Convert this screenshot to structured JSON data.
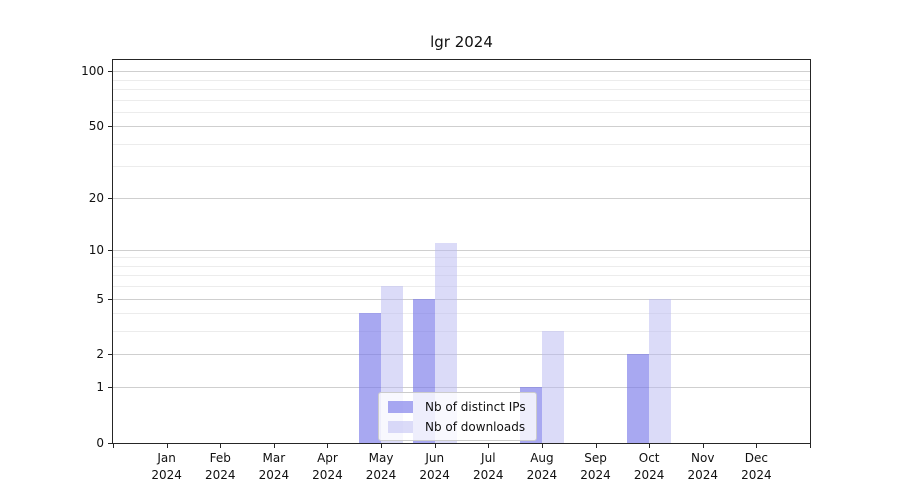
{
  "figure": {
    "title": "lgr 2024"
  },
  "chart_data": {
    "type": "bar",
    "title": "lgr 2024",
    "categories": [
      "Jan",
      "Feb",
      "Mar",
      "Apr",
      "May",
      "Jun",
      "Jul",
      "Aug",
      "Sep",
      "Oct",
      "Nov",
      "Dec"
    ],
    "x_year_label": "2024",
    "series": [
      {
        "name": "Nb of distinct IPs",
        "color": "rgba(122,122,233,0.65)",
        "values": [
          0,
          0,
          0,
          0,
          4,
          5,
          0,
          1,
          0,
          2,
          0,
          0
        ]
      },
      {
        "name": "Nb of downloads",
        "color": "rgba(183,183,241,0.5)",
        "values": [
          0,
          0,
          0,
          0,
          6,
          11,
          0,
          3,
          0,
          5,
          0,
          0
        ]
      }
    ],
    "xlabel": "",
    "ylabel": "",
    "yscale": "log1p",
    "ylim": [
      0,
      115
    ],
    "yticks_major": [
      0,
      1,
      2,
      5,
      10,
      20,
      50,
      100
    ],
    "yticks_minor": [
      3,
      4,
      6,
      7,
      8,
      9,
      30,
      40,
      60,
      70,
      80,
      90
    ],
    "grid": true,
    "legend_position": "lower-center"
  },
  "colors": {
    "bar_distinct_ips": "rgba(122,122,233,0.65)",
    "bar_downloads": "rgba(183,183,241,0.5)",
    "grid_major": "#cfcfcf",
    "grid_minor": "#ececec",
    "axis": "#262626",
    "background": "#ffffff"
  }
}
